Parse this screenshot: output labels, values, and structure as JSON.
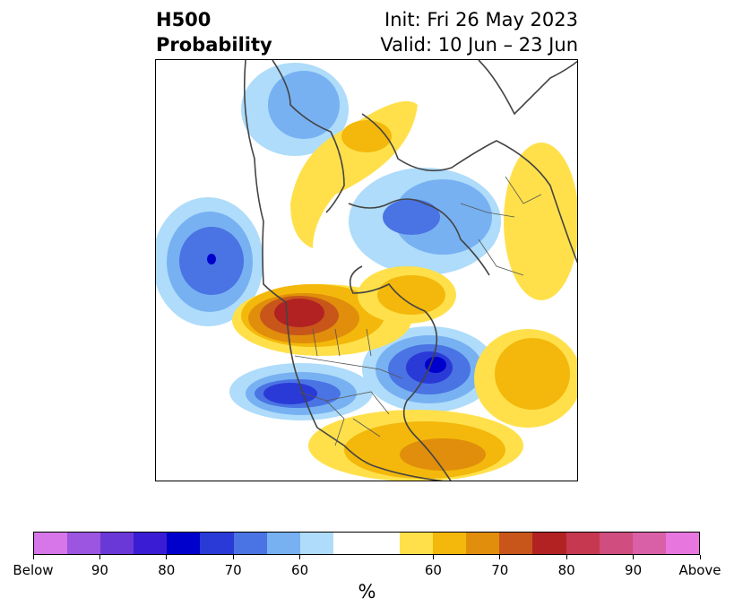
{
  "title": {
    "left_line1": "H500",
    "left_line2": "Probability",
    "right_line1": "Init: Fri 26 May 2023",
    "right_line2": "Valid: 10 Jun – 23 Jun"
  },
  "map": {
    "projection": "polar-stereographic",
    "region": "North America / Arctic",
    "features": [
      {
        "name": "below-pacific",
        "category": "Below",
        "max_level": 70
      },
      {
        "name": "below-greenland-north",
        "category": "Below",
        "max_level": 60
      },
      {
        "name": "below-arctic-siberia",
        "category": "Below",
        "max_level": 70
      },
      {
        "name": "below-western-us",
        "category": "Below",
        "max_level": 80
      },
      {
        "name": "below-eastern-canada",
        "category": "Below",
        "max_level": 90
      },
      {
        "name": "above-western-canada",
        "category": "Above",
        "max_level": 80
      },
      {
        "name": "above-central-arctic",
        "category": "Above",
        "max_level": 60
      },
      {
        "name": "above-hudson-bay",
        "category": "Above",
        "max_level": 60
      },
      {
        "name": "above-atlantic",
        "category": "Above",
        "max_level": 60
      },
      {
        "name": "above-gulf-of-mexico",
        "category": "Above",
        "max_level": 70
      },
      {
        "name": "above-europe",
        "category": "Above",
        "max_level": 60
      }
    ]
  },
  "colorbar": {
    "unit_label": "%",
    "colors": [
      "#d676e8",
      "#9b55e0",
      "#6b38d8",
      "#3a1cd5",
      "#0000cc",
      "#2a3ad6",
      "#4a73e3",
      "#77b1f2",
      "#aedcfa",
      "#ffffff",
      "#ffffff",
      "#ffe04a",
      "#f3b80b",
      "#e08e0b",
      "#c8561a",
      "#b22222",
      "#c5384f",
      "#cf4d7f",
      "#d95fa7",
      "#e777df"
    ],
    "tick_labels": [
      "Below",
      "90",
      "80",
      "70",
      "60",
      "60",
      "70",
      "80",
      "90",
      "Above"
    ],
    "tick_index": [
      0,
      2,
      4,
      6,
      8,
      12,
      14,
      16,
      18,
      20
    ]
  }
}
